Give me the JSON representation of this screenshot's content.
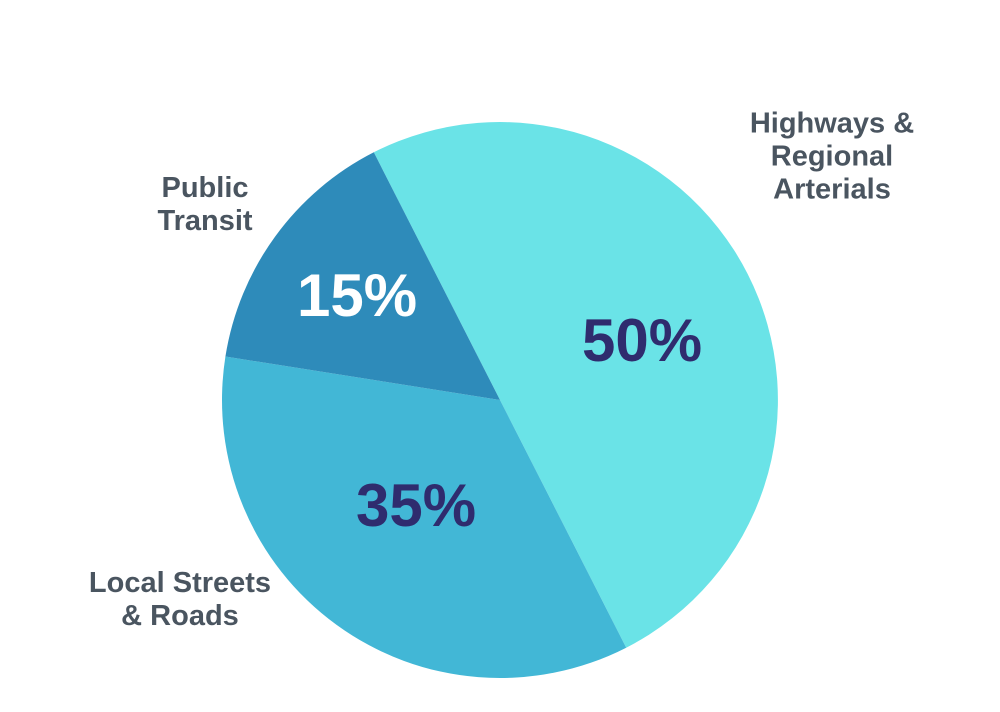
{
  "chart_data": {
    "type": "pie",
    "categories": [
      "Highways &\nRegional Arterials",
      "Local Streets\n& Roads",
      "Public\nTransit"
    ],
    "values": [
      50,
      35,
      15
    ],
    "value_labels": [
      "50%",
      "35%",
      "15%"
    ],
    "colors": [
      "#6ae3e7",
      "#42b7d6",
      "#2e8bba"
    ],
    "label_colors": [
      "#2f2c6e",
      "#2f2c6e",
      "#ffffff"
    ]
  }
}
